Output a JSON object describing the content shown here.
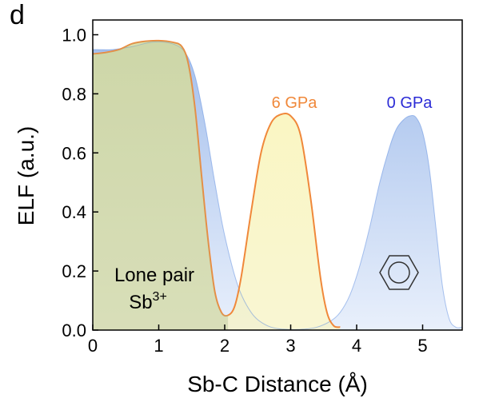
{
  "panel_letter": "d",
  "chart_data": {
    "type": "area",
    "xlabel": "Sb-C Distance (Å)",
    "ylabel": "ELF (a.u.)",
    "xlim": [
      0,
      5.6
    ],
    "ylim": [
      0,
      1.05
    ],
    "xticks": [
      0,
      1,
      2,
      3,
      4,
      5
    ],
    "yticks": [
      0.0,
      0.2,
      0.4,
      0.6,
      0.8,
      1.0
    ],
    "xtick_labels": [
      "0",
      "1",
      "2",
      "3",
      "4",
      "5"
    ],
    "ytick_labels": [
      "0.0",
      "0.2",
      "0.4",
      "0.6",
      "0.8",
      "1.0"
    ],
    "grid": false,
    "legend": "none",
    "series": [
      {
        "name": "0 GPa",
        "color": "#2b2bd6",
        "fill_top": "#9ab8ea",
        "fill_bottom": "#e6eefb",
        "x": [
          0,
          0.3,
          0.6,
          0.9,
          1.2,
          1.4,
          1.55,
          1.7,
          1.85,
          2.0,
          2.2,
          2.4,
          2.6,
          2.8,
          3.0,
          3.2,
          3.4,
          3.6,
          3.75,
          3.9,
          4.05,
          4.2,
          4.35,
          4.5,
          4.6,
          4.7,
          4.8,
          4.9,
          5.0,
          5.1,
          5.2,
          5.3,
          5.4,
          5.5,
          5.6
        ],
        "y": [
          0.95,
          0.95,
          0.96,
          0.975,
          0.97,
          0.94,
          0.86,
          0.7,
          0.5,
          0.32,
          0.15,
          0.06,
          0.02,
          0.005,
          0.002,
          0.003,
          0.01,
          0.03,
          0.06,
          0.12,
          0.22,
          0.35,
          0.5,
          0.62,
          0.68,
          0.71,
          0.725,
          0.72,
          0.67,
          0.55,
          0.35,
          0.15,
          0.04,
          0.01,
          0.01
        ]
      },
      {
        "name": "6 GPa",
        "color": "#f0883a",
        "fill_top": "#f8f3a8",
        "fill_bottom": "#f7f3c4",
        "x": [
          0,
          0.2,
          0.4,
          0.6,
          0.8,
          1.0,
          1.2,
          1.35,
          1.45,
          1.55,
          1.65,
          1.75,
          1.85,
          1.95,
          2.05,
          2.15,
          2.25,
          2.4,
          2.55,
          2.7,
          2.85,
          3.0,
          3.15,
          3.3,
          3.45,
          3.55,
          3.65,
          3.75
        ],
        "y": [
          0.935,
          0.94,
          0.95,
          0.97,
          0.978,
          0.98,
          0.975,
          0.96,
          0.9,
          0.75,
          0.52,
          0.3,
          0.13,
          0.06,
          0.05,
          0.08,
          0.18,
          0.4,
          0.6,
          0.7,
          0.73,
          0.725,
          0.66,
          0.45,
          0.18,
          0.06,
          0.015,
          0.01
        ]
      }
    ],
    "annotations": [
      {
        "text": "6 GPa",
        "color": "#f0883a"
      },
      {
        "text": "0 GPa",
        "color": "#2b2bd6"
      }
    ],
    "inset": {
      "line1": "Lone pair",
      "sb_text": "Sb",
      "sb_sup": "3+",
      "icon": "benzene-ring-icon"
    }
  }
}
